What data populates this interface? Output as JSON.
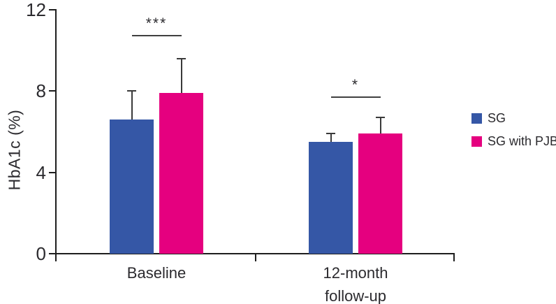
{
  "chart_data": {
    "type": "bar",
    "title": "",
    "xlabel": "",
    "ylabel": "HbA1c (%)",
    "ylim": [
      0,
      12
    ],
    "yticks": [
      0,
      4,
      8,
      12
    ],
    "categories": [
      "Baseline",
      "12-month\nfollow-up"
    ],
    "series": [
      {
        "name": "SG",
        "color": "#3557A6",
        "values": [
          6.6,
          5.5
        ],
        "errors_upper": [
          1.4,
          0.4
        ]
      },
      {
        "name": "SG with PJB",
        "color": "#E5007F",
        "values": [
          7.9,
          5.9
        ],
        "errors_upper": [
          1.7,
          0.8
        ]
      }
    ],
    "significance": [
      {
        "category": "Baseline",
        "label": "***"
      },
      {
        "category": "12-month follow-up",
        "label": "*"
      }
    ],
    "legend": {
      "position": "right",
      "entries": [
        "SG",
        "SG with PJB"
      ]
    },
    "grid": false,
    "error_bars": "upper-only with caps"
  },
  "colors": {
    "sg_blue": "#3557A6",
    "pjb_pink": "#E5007F",
    "axis": "#1e1e1e",
    "text": "#2b2a2e"
  }
}
